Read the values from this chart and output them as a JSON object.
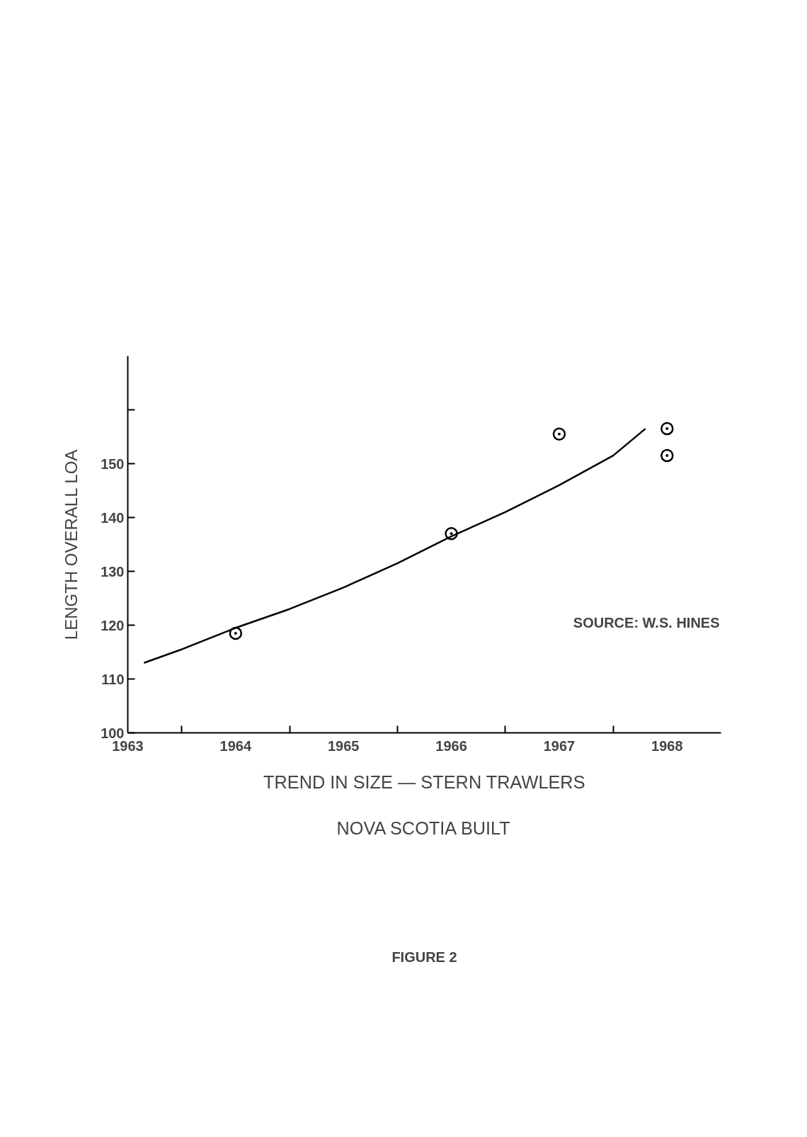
{
  "chart_data": {
    "type": "scatter",
    "title": "TREND IN SIZE — STERN TRAWLERS",
    "subtitle": "NOVA SCOTIA BUILT",
    "ylabel": "LENGTH OVERALL LOA",
    "series": [
      {
        "color": "#000000",
        "marker": "circle",
        "x": [
          1964,
          1966,
          1967,
          1968,
          1968
        ],
        "values": [
          118.5,
          137,
          155.5,
          156.5,
          151.5
        ]
      },
      {
        "type": "line",
        "color": "#000000",
        "marker": "none",
        "line_style": "solid",
        "x": [
          1963.15,
          1963.5,
          1964,
          1964.5,
          1965,
          1965.5,
          1966,
          1966.5,
          1967,
          1967.5,
          1967.8
        ],
        "values": [
          113,
          115.5,
          119.5,
          123,
          127,
          131.5,
          136.5,
          141,
          146,
          151.5,
          156.5
        ]
      }
    ],
    "xlim": [
      1963,
      1968.5
    ],
    "xticks": [
      1963,
      {
        "value": 1963.5,
        "label": null
      },
      1964,
      {
        "value": 1964.5,
        "label": null
      },
      1965,
      {
        "value": 1965.5,
        "label": null
      },
      1966,
      {
        "value": 1966.5,
        "label": null
      },
      1967,
      {
        "value": 1967.5,
        "label": null
      },
      1968
    ],
    "ylim": [
      100,
      170
    ],
    "yticks": [
      100,
      110,
      120,
      130,
      140,
      150,
      {
        "value": 160,
        "label": null
      }
    ],
    "grid": false,
    "annotations": [
      "SOURCE: W.S. HINES",
      "FIGURE 2"
    ]
  }
}
